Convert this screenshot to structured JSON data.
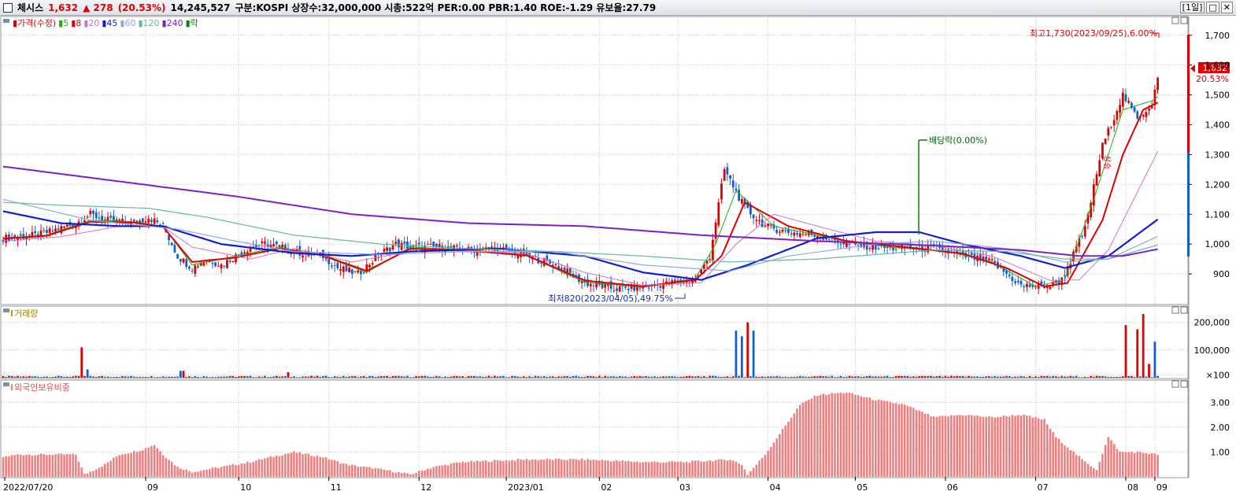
{
  "titlebar": {
    "name": "체시스",
    "price": "1,632",
    "change": "▲ 278",
    "change_pct": "(20.53%)",
    "volume": "14,245,527",
    "info": "구분:KOSPI 상장수:32,000,000 시총:522억 PER:0.00 PBR:1.40 ROE:-1.29 유보율:27.79",
    "period_button": "[1일]",
    "max_button": "□",
    "close_button": "✕"
  },
  "legend": {
    "price_label": "가격(수정)",
    "ma": [
      {
        "label": "5",
        "color": "#22aa22"
      },
      {
        "label": "8",
        "color": "#e00000"
      },
      {
        "label": "20",
        "color": "#d070d0"
      },
      {
        "label": "45",
        "color": "#1020d0"
      },
      {
        "label": "60",
        "color": "#8fa8e0"
      },
      {
        "label": "120",
        "color": "#5fb8a8"
      },
      {
        "label": "240",
        "color": "#8020c0"
      },
      {
        "label": "락",
        "color": "#008800"
      }
    ]
  },
  "annotations": {
    "high": "최고1,730(2023/09/25),6.00%",
    "low": "최저820(2023/04/05),49.75%",
    "dividend": "배당락(0.00%)",
    "up_marker": "상승"
  },
  "current": {
    "price": "1,632",
    "pct": "20.53%"
  },
  "volume_panel": {
    "label": "거래량",
    "ticks": [
      "200,000",
      "100,000",
      "×100"
    ]
  },
  "foreign_panel": {
    "label": "외국인보유비중",
    "ticks": [
      "3.00",
      "2.00",
      "1.00"
    ]
  },
  "colors": {
    "up": "#e00000",
    "down": "#1060d0",
    "foreign": "#f08080",
    "grid": "#c0c0c0"
  },
  "chart_data": [
    {
      "type": "candlestick",
      "title": "",
      "y_ticks": [
        "1,700",
        "1,600",
        "1,500",
        "1,400",
        "1,300",
        "1,200",
        "1,100",
        "1,000",
        "900"
      ],
      "ylim": [
        800,
        1760
      ],
      "x_labels": [
        "2022/07/20",
        "09",
        "10",
        "11",
        "12",
        "2023/01",
        "02",
        "03",
        "04",
        "05",
        "06",
        "07",
        "08",
        "09"
      ],
      "series": [
        {
          "name": "가격(수정)",
          "close_path": [
            [
              0,
              1020
            ],
            [
              12,
              1030
            ],
            [
              25,
              1070
            ],
            [
              30,
              1100
            ],
            [
              35,
              1080
            ],
            [
              45,
              1070
            ],
            [
              50,
              1090
            ],
            [
              55,
              1060
            ],
            [
              60,
              960
            ],
            [
              65,
              920
            ],
            [
              70,
              950
            ],
            [
              75,
              930
            ],
            [
              80,
              960
            ],
            [
              85,
              990
            ],
            [
              90,
              1000
            ],
            [
              95,
              990
            ],
            [
              100,
              975
            ],
            [
              110,
              960
            ],
            [
              115,
              920
            ],
            [
              122,
              900
            ],
            [
              130,
              970
            ],
            [
              135,
              1000
            ],
            [
              140,
              990
            ],
            [
              150,
              990
            ],
            [
              160,
              980
            ],
            [
              170,
              985
            ],
            [
              180,
              960
            ],
            [
              190,
              930
            ],
            [
              200,
              870
            ],
            [
              210,
              850
            ],
            [
              220,
              855
            ],
            [
              230,
              870
            ],
            [
              238,
              880
            ],
            [
              243,
              960
            ],
            [
              248,
              1250
            ],
            [
              255,
              1120
            ],
            [
              262,
              1060
            ],
            [
              270,
              1040
            ],
            [
              280,
              1030
            ],
            [
              290,
              1000
            ],
            [
              300,
              990
            ],
            [
              310,
              985
            ],
            [
              320,
              985
            ],
            [
              330,
              960
            ],
            [
              340,
              940
            ],
            [
              350,
              860
            ],
            [
              360,
              860
            ],
            [
              364,
              880
            ],
            [
              372,
              1050
            ],
            [
              378,
              1330
            ],
            [
              385,
              1500
            ],
            [
              390,
              1420
            ],
            [
              395,
              1470
            ],
            [
              398,
              1600
            ]
          ]
        },
        {
          "name": "5",
          "path": [
            [
              0,
              1020
            ],
            [
              15,
              1030
            ],
            [
              30,
              1080
            ],
            [
              45,
              1075
            ],
            [
              55,
              1060
            ],
            [
              65,
              930
            ],
            [
              80,
              960
            ],
            [
              95,
              990
            ],
            [
              110,
              960
            ],
            [
              125,
              905
            ],
            [
              140,
              990
            ],
            [
              160,
              980
            ],
            [
              180,
              962
            ],
            [
              200,
              872
            ],
            [
              220,
              856
            ],
            [
              238,
              885
            ],
            [
              245,
              1000
            ],
            [
              252,
              1180
            ],
            [
              265,
              1060
            ],
            [
              285,
              1020
            ],
            [
              305,
              990
            ],
            [
              325,
              975
            ],
            [
              340,
              940
            ],
            [
              355,
              858
            ],
            [
              365,
              880
            ],
            [
              375,
              1150
            ],
            [
              385,
              1450
            ],
            [
              395,
              1480
            ],
            [
              398,
              1500
            ]
          ]
        },
        {
          "name": "8",
          "path": [
            [
              0,
              1018
            ],
            [
              15,
              1028
            ],
            [
              30,
              1075
            ],
            [
              45,
              1072
            ],
            [
              55,
              1058
            ],
            [
              65,
              940
            ],
            [
              80,
              955
            ],
            [
              95,
              985
            ],
            [
              110,
              962
            ],
            [
              125,
              910
            ],
            [
              140,
              985
            ],
            [
              160,
              978
            ],
            [
              180,
              962
            ],
            [
              200,
              878
            ],
            [
              220,
              858
            ],
            [
              238,
              880
            ],
            [
              247,
              960
            ],
            [
              255,
              1140
            ],
            [
              270,
              1060
            ],
            [
              290,
              1010
            ],
            [
              310,
              990
            ],
            [
              330,
              968
            ],
            [
              345,
              920
            ],
            [
              358,
              858
            ],
            [
              366,
              870
            ],
            [
              378,
              1080
            ],
            [
              385,
              1300
            ],
            [
              392,
              1450
            ],
            [
              398,
              1480
            ]
          ]
        },
        {
          "name": "20",
          "path": [
            [
              0,
              1010
            ],
            [
              20,
              1025
            ],
            [
              40,
              1060
            ],
            [
              55,
              1058
            ],
            [
              65,
              990
            ],
            [
              85,
              950
            ],
            [
              100,
              985
            ],
            [
              120,
              940
            ],
            [
              140,
              975
            ],
            [
              160,
              978
            ],
            [
              180,
              968
            ],
            [
              200,
              905
            ],
            [
              220,
              862
            ],
            [
              240,
              870
            ],
            [
              252,
              1000
            ],
            [
              265,
              1100
            ],
            [
              280,
              1060
            ],
            [
              300,
              1010
            ],
            [
              320,
              995
            ],
            [
              340,
              960
            ],
            [
              360,
              878
            ],
            [
              370,
              880
            ],
            [
              380,
              980
            ],
            [
              398,
              1330
            ]
          ]
        },
        {
          "name": "45",
          "path": [
            [
              0,
              1110
            ],
            [
              20,
              1070
            ],
            [
              40,
              1060
            ],
            [
              55,
              1060
            ],
            [
              75,
              1000
            ],
            [
              100,
              970
            ],
            [
              120,
              960
            ],
            [
              140,
              975
            ],
            [
              170,
              985
            ],
            [
              200,
              960
            ],
            [
              220,
              905
            ],
            [
              240,
              880
            ],
            [
              256,
              930
            ],
            [
              280,
              1020
            ],
            [
              300,
              1040
            ],
            [
              315,
              1040
            ],
            [
              330,
              1000
            ],
            [
              350,
              960
            ],
            [
              365,
              920
            ],
            [
              380,
              960
            ],
            [
              398,
              1090
            ]
          ]
        },
        {
          "name": "60",
          "path": [
            [
              0,
              1150
            ],
            [
              30,
              1080
            ],
            [
              60,
              1050
            ],
            [
              80,
              1010
            ],
            [
              100,
              975
            ],
            [
              130,
              965
            ],
            [
              160,
              975
            ],
            [
              190,
              975
            ],
            [
              220,
              930
            ],
            [
              250,
              910
            ],
            [
              270,
              960
            ],
            [
              300,
              1000
            ],
            [
              320,
              1010
            ],
            [
              345,
              985
            ],
            [
              365,
              940
            ],
            [
              380,
              950
            ],
            [
              398,
              1030
            ]
          ]
        },
        {
          "name": "120",
          "path": [
            [
              0,
              1140
            ],
            [
              20,
              1130
            ],
            [
              50,
              1120
            ],
            [
              70,
              1090
            ],
            [
              100,
              1030
            ],
            [
              130,
              1000
            ],
            [
              160,
              985
            ],
            [
              190,
              975
            ],
            [
              220,
              960
            ],
            [
              250,
              940
            ],
            [
              280,
              950
            ],
            [
              320,
              980
            ],
            [
              345,
              975
            ],
            [
              365,
              950
            ],
            [
              380,
              950
            ],
            [
              398,
              1000
            ]
          ]
        },
        {
          "name": "240",
          "path": [
            [
              0,
              1260
            ],
            [
              40,
              1210
            ],
            [
              80,
              1160
            ],
            [
              120,
              1100
            ],
            [
              160,
              1070
            ],
            [
              200,
              1060
            ],
            [
              240,
              1030
            ],
            [
              280,
              1010
            ],
            [
              320,
              995
            ],
            [
              350,
              980
            ],
            [
              370,
              960
            ],
            [
              385,
              960
            ],
            [
              398,
              985
            ]
          ]
        }
      ]
    },
    {
      "type": "bar",
      "title": "거래량",
      "y_ticks": [
        "200,000",
        "100,000",
        "×100"
      ],
      "ylim": [
        0,
        250000
      ]
    },
    {
      "type": "bar",
      "title": "외국인보유비중",
      "y_ticks": [
        "3.00",
        "2.00",
        "1.00"
      ],
      "ylim": [
        0,
        3.8
      ]
    }
  ]
}
